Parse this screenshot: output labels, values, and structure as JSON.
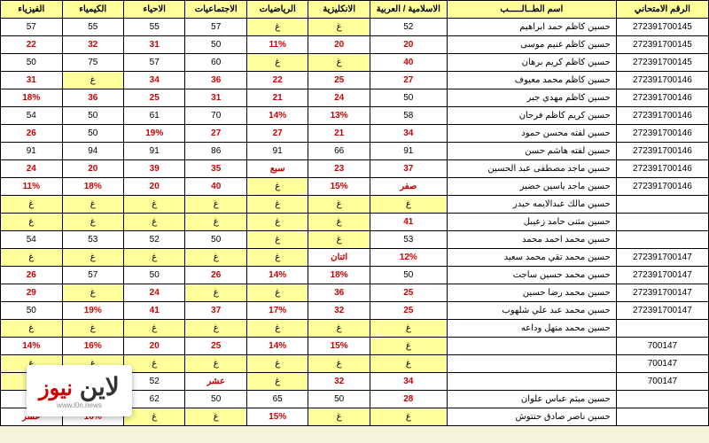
{
  "columns": [
    "الرقم الامتحاني",
    "اسم الطــالـــــب",
    "الاسلامية / العربية",
    "الانكليزية",
    "الرياضيات",
    "الاجتماعيات",
    "الاحياء",
    "الكيمياء",
    "الفيزياء"
  ],
  "col_widths": [
    "12%",
    "22%",
    "10%",
    "8%",
    "8%",
    "8%",
    "8%",
    "8%",
    "8%"
  ],
  "rows": [
    {
      "id": "272391700145",
      "name": "حسين كاظم حمد ابراهيم",
      "cells": [
        {
          "v": "52"
        },
        {
          "v": "غ",
          "g": 1
        },
        {
          "v": "غ",
          "g": 1
        },
        {
          "v": "57"
        },
        {
          "v": "55"
        },
        {
          "v": "55"
        },
        {
          "v": "57"
        }
      ]
    },
    {
      "id": "272391700145",
      "name": "حسين كاظم غنيم موسى",
      "cells": [
        {
          "v": "20",
          "r": 1
        },
        {
          "v": "20",
          "r": 1
        },
        {
          "v": "11%",
          "r": 1
        },
        {
          "v": "50"
        },
        {
          "v": "31",
          "r": 1
        },
        {
          "v": "32",
          "r": 1
        },
        {
          "v": "22",
          "r": 1
        }
      ]
    },
    {
      "id": "272391700145",
      "name": "حسين كاظم كريم برهان",
      "cells": [
        {
          "v": "40",
          "r": 1
        },
        {
          "v": "غ",
          "g": 1
        },
        {
          "v": "غ",
          "g": 1
        },
        {
          "v": "60"
        },
        {
          "v": "57"
        },
        {
          "v": "75"
        },
        {
          "v": "50"
        }
      ]
    },
    {
      "id": "272391700146",
      "name": "حسين كاظم محمد معيوف",
      "cells": [
        {
          "v": "27",
          "r": 1
        },
        {
          "v": "25",
          "r": 1
        },
        {
          "v": "22",
          "r": 1
        },
        {
          "v": "36",
          "r": 1
        },
        {
          "v": "34",
          "r": 1
        },
        {
          "v": "غ",
          "g": 1
        },
        {
          "v": "31",
          "r": 1
        }
      ]
    },
    {
      "id": "272391700146",
      "name": "حسين كاظم مهدي جبر",
      "cells": [
        {
          "v": "50"
        },
        {
          "v": "24",
          "r": 1
        },
        {
          "v": "21",
          "r": 1
        },
        {
          "v": "31",
          "r": 1
        },
        {
          "v": "25",
          "r": 1
        },
        {
          "v": "36",
          "r": 1
        },
        {
          "v": "18%",
          "r": 1
        }
      ]
    },
    {
      "id": "272391700146",
      "name": "حسين كريم كاظم فرحان",
      "cells": [
        {
          "v": "58"
        },
        {
          "v": "13%",
          "r": 1
        },
        {
          "v": "14%",
          "r": 1
        },
        {
          "v": "70"
        },
        {
          "v": "61"
        },
        {
          "v": "50"
        },
        {
          "v": "54"
        }
      ]
    },
    {
      "id": "272391700146",
      "name": "حسين لفته محسن حمود",
      "cells": [
        {
          "v": "34",
          "r": 1
        },
        {
          "v": "21",
          "r": 1
        },
        {
          "v": "27",
          "r": 1
        },
        {
          "v": "27",
          "r": 1
        },
        {
          "v": "19%",
          "r": 1
        },
        {
          "v": "50"
        },
        {
          "v": "26",
          "r": 1
        }
      ]
    },
    {
      "id": "272391700146",
      "name": "حسين لفته هاشم حسن",
      "cells": [
        {
          "v": "91"
        },
        {
          "v": "66"
        },
        {
          "v": "91"
        },
        {
          "v": "86"
        },
        {
          "v": "91"
        },
        {
          "v": "94"
        },
        {
          "v": "91"
        }
      ]
    },
    {
      "id": "272391700146",
      "name": "حسين ماجد مصطفى عبد الحسين",
      "cells": [
        {
          "v": "37",
          "r": 1
        },
        {
          "v": "23",
          "r": 1
        },
        {
          "v": "سبع",
          "r": 1
        },
        {
          "v": "35",
          "r": 1
        },
        {
          "v": "39",
          "r": 1
        },
        {
          "v": "20",
          "r": 1
        },
        {
          "v": "24",
          "r": 1
        }
      ]
    },
    {
      "id": "272391700146",
      "name": "حسين ماجد ياسين خضير",
      "cells": [
        {
          "v": "صفر",
          "r": 1
        },
        {
          "v": "15%",
          "r": 1
        },
        {
          "v": "غ",
          "g": 1
        },
        {
          "v": "40",
          "r": 1
        },
        {
          "v": "20",
          "r": 1
        },
        {
          "v": "18%",
          "r": 1
        },
        {
          "v": "11%",
          "r": 1
        }
      ]
    },
    {
      "id": "",
      "name": "حسين مالك عبدالايمه حيدر",
      "cells": [
        {
          "v": "غ",
          "g": 1
        },
        {
          "v": "غ",
          "g": 1
        },
        {
          "v": "غ",
          "g": 1
        },
        {
          "v": "غ",
          "g": 1
        },
        {
          "v": "غ",
          "g": 1
        },
        {
          "v": "غ",
          "g": 1
        },
        {
          "v": "غ",
          "g": 1
        }
      ]
    },
    {
      "id": "",
      "name": "حسين مثنى حامد زعيبل",
      "cells": [
        {
          "v": "41",
          "r": 1
        },
        {
          "v": "غ",
          "g": 1
        },
        {
          "v": "غ",
          "g": 1
        },
        {
          "v": "غ",
          "g": 1
        },
        {
          "v": "غ",
          "g": 1
        },
        {
          "v": "غ",
          "g": 1
        },
        {
          "v": "غ",
          "g": 1
        }
      ]
    },
    {
      "id": "",
      "name": "حسين محمد احمد محمد",
      "cells": [
        {
          "v": "53"
        },
        {
          "v": "غ",
          "g": 1
        },
        {
          "v": "غ",
          "g": 1
        },
        {
          "v": "50"
        },
        {
          "v": "52"
        },
        {
          "v": "53"
        },
        {
          "v": "54"
        }
      ]
    },
    {
      "id": "272391700147",
      "name": "حسين محمد تقي محمد سعيد",
      "cells": [
        {
          "v": "12%",
          "r": 1
        },
        {
          "v": "اثنان",
          "r": 1
        },
        {
          "v": "غ",
          "g": 1
        },
        {
          "v": "غ",
          "g": 1
        },
        {
          "v": "غ",
          "g": 1
        },
        {
          "v": "غ",
          "g": 1
        },
        {
          "v": "غ",
          "g": 1
        }
      ]
    },
    {
      "id": "272391700147",
      "name": "حسين محمد حسين ساجت",
      "cells": [
        {
          "v": "50"
        },
        {
          "v": "18%",
          "r": 1
        },
        {
          "v": "14%",
          "r": 1
        },
        {
          "v": "26",
          "r": 1
        },
        {
          "v": "50"
        },
        {
          "v": "57"
        },
        {
          "v": "26",
          "r": 1
        }
      ]
    },
    {
      "id": "272391700147",
      "name": "حسين محمد رضا حسين",
      "cells": [
        {
          "v": "25",
          "r": 1
        },
        {
          "v": "36",
          "r": 1
        },
        {
          "v": "غ",
          "g": 1
        },
        {
          "v": "غ",
          "g": 1
        },
        {
          "v": "24",
          "r": 1
        },
        {
          "v": "غ",
          "g": 1
        },
        {
          "v": "29",
          "r": 1
        }
      ]
    },
    {
      "id": "272391700147",
      "name": "حسين محمد عبد علي شلهوب",
      "cells": [
        {
          "v": "25",
          "r": 1
        },
        {
          "v": "32",
          "r": 1
        },
        {
          "v": "17%",
          "r": 1
        },
        {
          "v": "37",
          "r": 1
        },
        {
          "v": "41",
          "r": 1
        },
        {
          "v": "19%",
          "r": 1
        },
        {
          "v": "50"
        }
      ]
    },
    {
      "id": "",
      "name": "حسين محمد منهل وداعه",
      "cells": [
        {
          "v": "غ",
          "g": 1
        },
        {
          "v": "غ",
          "g": 1
        },
        {
          "v": "غ",
          "g": 1
        },
        {
          "v": "غ",
          "g": 1
        },
        {
          "v": "غ",
          "g": 1
        },
        {
          "v": "غ",
          "g": 1
        },
        {
          "v": "غ",
          "g": 1
        }
      ]
    },
    {
      "id": "700147",
      "name": "",
      "cells": [
        {
          "v": "غ",
          "g": 1
        },
        {
          "v": "15%",
          "r": 1
        },
        {
          "v": "14%",
          "r": 1
        },
        {
          "v": "25",
          "r": 1
        },
        {
          "v": "20",
          "r": 1
        },
        {
          "v": "16%",
          "r": 1
        },
        {
          "v": "14%",
          "r": 1
        }
      ]
    },
    {
      "id": "700147",
      "name": "",
      "cells": [
        {
          "v": "غ",
          "g": 1
        },
        {
          "v": "غ",
          "g": 1
        },
        {
          "v": "غ",
          "g": 1
        },
        {
          "v": "غ",
          "g": 1
        },
        {
          "v": "غ",
          "g": 1
        },
        {
          "v": "غ",
          "g": 1
        },
        {
          "v": "غ",
          "g": 1
        }
      ]
    },
    {
      "id": "700147",
      "name": "",
      "cells": [
        {
          "v": "34",
          "r": 1
        },
        {
          "v": "32",
          "r": 1
        },
        {
          "v": "غ",
          "g": 1
        },
        {
          "v": "عشر",
          "r": 1
        },
        {
          "v": "52"
        },
        {
          "v": "غ",
          "g": 1
        },
        {
          "v": "غ",
          "g": 1
        }
      ]
    },
    {
      "id": "",
      "name": "حسين ميثم عباس علوان",
      "cells": [
        {
          "v": "28",
          "r": 1
        },
        {
          "v": "50"
        },
        {
          "v": "65"
        },
        {
          "v": "50"
        },
        {
          "v": "62"
        },
        {
          "v": "غ",
          "g": 1
        },
        {
          "v": "39",
          "r": 1
        }
      ]
    },
    {
      "id": "",
      "name": "حسين ناصر صادق حنتوش",
      "cells": [
        {
          "v": "غ",
          "g": 1
        },
        {
          "v": "غ",
          "g": 1
        },
        {
          "v": "15%",
          "r": 1
        },
        {
          "v": "غ",
          "g": 1
        },
        {
          "v": "غ",
          "g": 1
        },
        {
          "v": "16%",
          "r": 1
        },
        {
          "v": "عشر",
          "r": 1
        }
      ]
    }
  ],
  "logo": {
    "line": "لاين",
    "news": "نيوز",
    "url": "www.l0n.news"
  }
}
